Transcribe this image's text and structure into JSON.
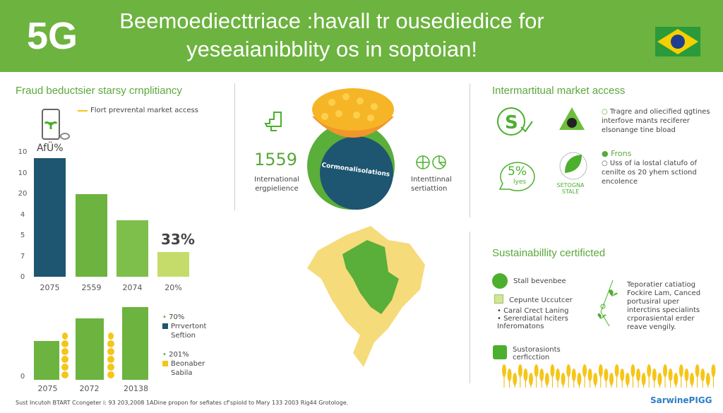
{
  "header": {
    "badge": "5G",
    "title_line1": "Beemoediecttriace :havall tr ousediedice for",
    "title_line2": "yeseaianibblity os in soptoian!",
    "flag_icon": "brazil-flag-icon"
  },
  "colors": {
    "green": "#6cb33f",
    "dark_blue": "#1e5570",
    "light_green": "#c5dc6a",
    "yellow": "#f5c518",
    "map_yellow": "#f6db7a"
  },
  "left": {
    "title": "Fraud beductsier starsy crnplitiancy",
    "legend": "Flort prevrental market access",
    "phone_label": "AfÜ%",
    "callout": "33%",
    "chart_data": [
      {
        "type": "bar",
        "yticks": [
          "10",
          "10",
          "20",
          "4",
          "5",
          "7",
          "0"
        ],
        "categories": [
          "2075",
          "2559",
          "2074",
          "20%"
        ],
        "values": [
          95,
          66,
          45,
          20
        ],
        "ylim": [
          0,
          100
        ],
        "colors": [
          "#1e5570",
          "#6cb33f",
          "#7dbf4a",
          "#c5dc6a"
        ]
      },
      {
        "type": "bar",
        "yticks": [
          "0"
        ],
        "categories": [
          "2075",
          "2072",
          "20138"
        ],
        "values": [
          50,
          79,
          94
        ],
        "ylim": [
          0,
          100
        ],
        "colors": [
          "#6cb33f",
          "#6cb33f",
          "#6cb33f"
        ]
      }
    ],
    "legend2": [
      {
        "pct": "70%",
        "label": "Prrvertont Seftion",
        "color": "#1e5570"
      },
      {
        "pct": "201%",
        "label": "Beonaber Sabila",
        "color": "#f5c518"
      }
    ]
  },
  "center": {
    "stat": "1559",
    "stat_label1": "International",
    "stat_label2": "ergpielience",
    "circle_label": "Cormonalisolations",
    "right_label1": "Intenttinnal",
    "right_label2": "sertiattion"
  },
  "right": {
    "title": "Intermartitual market access",
    "badge1": "S",
    "badge2_pct": "5%",
    "badge2_sub": "lyes",
    "leaf_label1": "SETOGNA",
    "leaf_label2": "STALE",
    "bullet1": "Tragre and oliecified qgtines interfove mants reciferer elsonange tine bload",
    "bullet2_head": "Frons",
    "bullet3": "Uss of ia lostal clatufo of cenilte os 20 yhem sctiond encolence",
    "sust_title": "Sustainabillity certificted",
    "s1": "Stall bevenbee",
    "s2": "Cepunte Uccutcer",
    "s2_items": [
      "Caral Crect Laning",
      "Sererdiatal hciters Inferomatons"
    ],
    "s3": "Sustorasionts cerficction",
    "right_text": "Teporatier catiatiog Fockire Lam, Canced portusiral uper interctins specialints crporasiental erder reave vengily."
  },
  "footer": {
    "source": "Sust Incutoh BTART Ccongeter i: 93 203,2008 1ADine propon for sefiates cf'spiold to Mary 133 2003 Rig44 Grotologe.",
    "brand": "SarwinePIGG"
  }
}
